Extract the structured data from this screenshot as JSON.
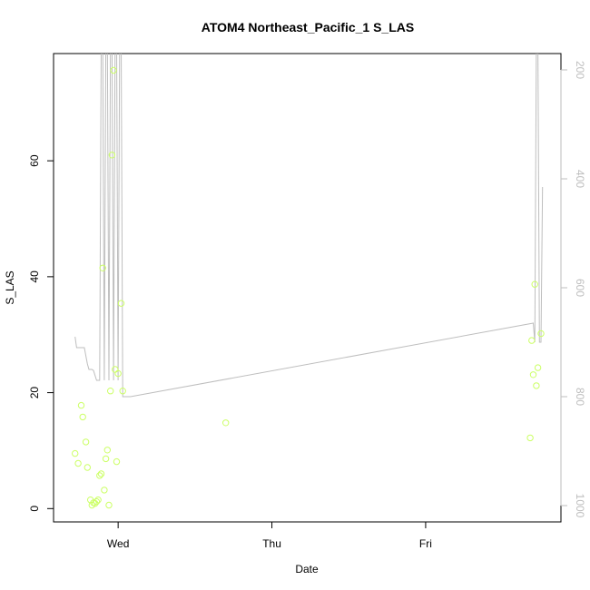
{
  "chart_data": {
    "type": "scatter",
    "title": "ATOM4 Northeast_Pacific_1 S_LAS",
    "xlabel": "Date",
    "ylabel": "S_LAS",
    "x_tick_labels": [
      "Wed",
      "Thu",
      "Fri"
    ],
    "x_tick_days": [
      1.0,
      2.0,
      3.0
    ],
    "xlim": [
      0.58,
      3.88
    ],
    "ylim": [
      -2.3,
      78.5
    ],
    "y_ticks": [
      0,
      20,
      40,
      60
    ],
    "y2_ticks": [
      200,
      400,
      600,
      800,
      1000
    ],
    "y2lim": [
      1030,
      170
    ],
    "series": [
      {
        "kind": "points",
        "color": "#ccff66",
        "x": [
          0.72,
          0.74,
          0.76,
          0.77,
          0.79,
          0.8,
          0.82,
          0.83,
          0.84,
          0.85,
          0.86,
          0.87,
          0.88,
          0.89,
          0.91,
          0.92,
          0.93,
          0.94,
          0.95,
          0.96,
          0.98,
          0.99,
          1.0,
          1.02,
          1.03,
          0.9,
          0.97,
          1.7,
          3.68,
          3.69,
          3.7,
          3.71,
          3.72,
          3.73,
          3.75
        ],
        "y": [
          9.5,
          7.8,
          17.8,
          15.8,
          11.5,
          7.1,
          1.5,
          0.6,
          1.0,
          0.9,
          1.2,
          1.5,
          5.7,
          6.0,
          3.2,
          8.6,
          10.1,
          0.6,
          20.3,
          61.0,
          24.0,
          8.1,
          23.3,
          35.4,
          20.3,
          41.5,
          75.6,
          14.8,
          12.2,
          29.0,
          23.1,
          38.7,
          21.2,
          24.3,
          30.2
        ]
      },
      {
        "kind": "line",
        "color": "#bebebe",
        "axis": "right",
        "x": [
          0.72,
          0.73,
          0.75,
          0.77,
          0.78,
          0.8,
          0.81,
          0.83,
          0.84,
          0.86,
          0.87,
          0.88,
          0.89,
          0.9,
          0.91,
          0.92,
          0.93,
          0.94,
          0.95,
          0.96,
          0.97,
          0.98,
          0.99,
          1.0,
          1.01,
          1.02,
          1.03,
          1.04,
          1.06,
          1.07,
          1.08,
          3.7,
          3.71,
          3.72,
          3.73,
          3.74,
          3.75,
          3.76
        ],
        "y": [
          690,
          710,
          710,
          710,
          710,
          740,
          750,
          750,
          752,
          770,
          770,
          770,
          150,
          150,
          770,
          150,
          150,
          770,
          150,
          150,
          770,
          150,
          150,
          770,
          150,
          150,
          800,
          800,
          800,
          800,
          800,
          665,
          700,
          150,
          150,
          700,
          700,
          415
        ]
      }
    ],
    "grid": false,
    "legend": "none"
  }
}
